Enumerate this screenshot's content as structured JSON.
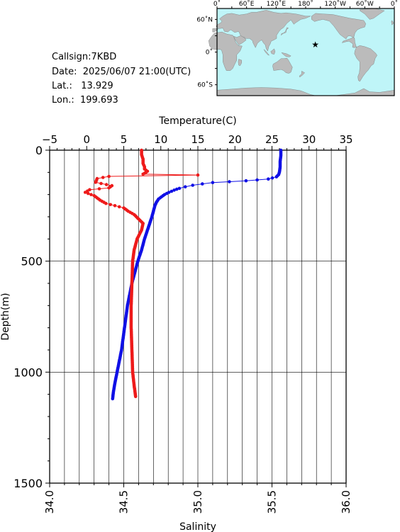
{
  "info": {
    "callsign": "Callsign:7KBD",
    "date": "Date:  2025/06/07 21:00(UTC)",
    "lat": "Lat.:   13.929",
    "lon": "Lon.:  199.693"
  },
  "map": {
    "lon_labels": [
      "0˚",
      "60˚E",
      "120˚E",
      "180˚",
      "120˚W",
      "60˚W",
      "0˚"
    ],
    "lat_labels": [
      "60˚N",
      "0˚",
      "60˚S"
    ],
    "ocean_color": "#bff5f8",
    "land_color": "#bbbbbb",
    "marker": {
      "lon_east": 199.693,
      "lat": 13.929,
      "color": "#ff0000",
      "icon": "star-icon"
    }
  },
  "chart_data": {
    "type": "scatter",
    "ylabel": "Depth(m)",
    "y_ticks": [
      "0",
      "500",
      "1000",
      "1500"
    ],
    "ylim": [
      0,
      1500
    ],
    "inverted_y": true,
    "grid": true,
    "top_axis": {
      "label": "Temperature(C)",
      "ticks": [
        "−5",
        "0",
        "5",
        "10",
        "15",
        "20",
        "25",
        "30",
        "35"
      ],
      "range": [
        -5,
        35
      ]
    },
    "bottom_axis": {
      "label": "Salinity",
      "ticks": [
        "34.0",
        "34.5",
        "35.0",
        "35.5",
        "36.0"
      ],
      "range": [
        34.0,
        36.0
      ]
    },
    "series": [
      {
        "quantity": "temperature",
        "color": "#1010e6",
        "points": [
          [
            26.2,
            0
          ],
          [
            26.2,
            25
          ],
          [
            26.1,
            50
          ],
          [
            26.1,
            75
          ],
          [
            26.0,
            100
          ],
          [
            25.9,
            110
          ],
          [
            25.6,
            120
          ],
          [
            24.5,
            130
          ],
          [
            21.5,
            138
          ],
          [
            17.0,
            146
          ],
          [
            15.6,
            152
          ],
          [
            14.3,
            158
          ],
          [
            13.3,
            165
          ],
          [
            12.5,
            172
          ],
          [
            11.8,
            180
          ],
          [
            11.1,
            190
          ],
          [
            10.5,
            200
          ],
          [
            10.1,
            210
          ],
          [
            9.7,
            220
          ],
          [
            9.4,
            235
          ],
          [
            9.2,
            250
          ],
          [
            9.0,
            275
          ],
          [
            8.8,
            300
          ],
          [
            8.5,
            330
          ],
          [
            8.2,
            360
          ],
          [
            7.8,
            400
          ],
          [
            7.4,
            450
          ],
          [
            6.9,
            500
          ],
          [
            6.5,
            550
          ],
          [
            6.1,
            600
          ],
          [
            5.8,
            650
          ],
          [
            5.5,
            700
          ],
          [
            5.3,
            750
          ],
          [
            5.1,
            800
          ],
          [
            4.9,
            850
          ],
          [
            4.7,
            900
          ],
          [
            4.4,
            950
          ],
          [
            4.1,
            1000
          ],
          [
            3.8,
            1050
          ],
          [
            3.6,
            1090
          ],
          [
            3.5,
            1120
          ]
        ]
      },
      {
        "quantity": "salinity",
        "color": "#ee1a1a",
        "points": [
          [
            34.62,
            0
          ],
          [
            34.62,
            20
          ],
          [
            34.63,
            40
          ],
          [
            34.63,
            60
          ],
          [
            34.64,
            75
          ],
          [
            34.64,
            85
          ],
          [
            34.66,
            95
          ],
          [
            34.65,
            100
          ],
          [
            34.63,
            108
          ],
          [
            35.0,
            112
          ],
          [
            34.4,
            118
          ],
          [
            34.32,
            128
          ],
          [
            34.31,
            145
          ],
          [
            34.42,
            160
          ],
          [
            34.4,
            170
          ],
          [
            34.27,
            178
          ],
          [
            34.24,
            190
          ],
          [
            34.3,
            205
          ],
          [
            34.34,
            225
          ],
          [
            34.38,
            240
          ],
          [
            34.44,
            250
          ],
          [
            34.5,
            260
          ],
          [
            34.53,
            275
          ],
          [
            34.57,
            290
          ],
          [
            34.6,
            310
          ],
          [
            34.63,
            330
          ],
          [
            34.62,
            360
          ],
          [
            34.59,
            400
          ],
          [
            34.57,
            450
          ],
          [
            34.56,
            500
          ],
          [
            34.555,
            600
          ],
          [
            34.55,
            700
          ],
          [
            34.55,
            800
          ],
          [
            34.555,
            900
          ],
          [
            34.56,
            1000
          ],
          [
            34.57,
            1060
          ],
          [
            34.58,
            1110
          ]
        ]
      }
    ]
  }
}
